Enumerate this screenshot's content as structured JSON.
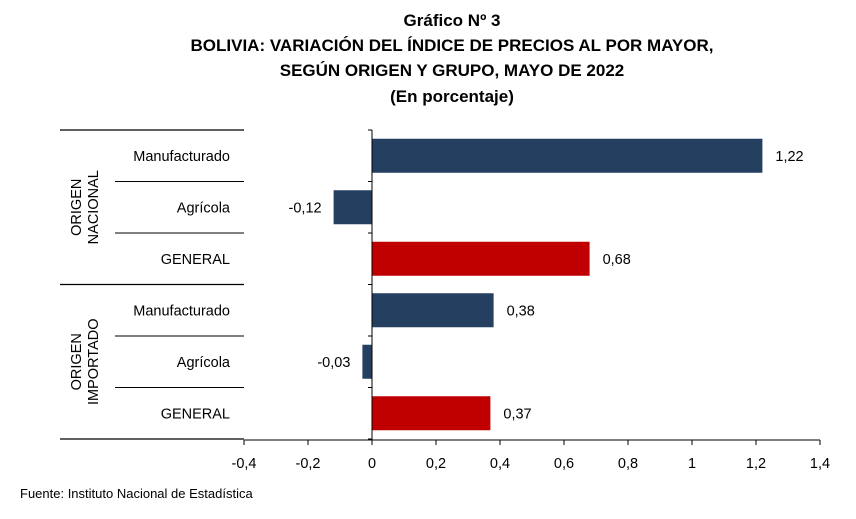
{
  "chart_data": {
    "type": "bar",
    "orientation": "horizontal",
    "title": [
      "Gráfico Nº 3",
      "BOLIVIA: VARIACIÓN DEL ÍNDICE DE PRECIOS AL POR MAYOR,",
      "SEGÚN ORIGEN Y GRUPO, MAYO DE 2022",
      "(En porcentaje)"
    ],
    "groups": [
      {
        "label": [
          "ORIGEN",
          "NACIONAL"
        ],
        "categories": [
          "Manufacturado",
          "Agrícola",
          "GENERAL"
        ]
      },
      {
        "label": [
          "ORIGEN",
          "IMPORTADO"
        ],
        "categories": [
          "Manufacturado",
          "Agrícola",
          "GENERAL"
        ]
      }
    ],
    "values": [
      1.22,
      -0.12,
      0.68,
      0.38,
      -0.03,
      0.37
    ],
    "value_labels": [
      "1,22",
      "-0,12",
      "0,68",
      "0,38",
      "-0,03",
      "0,37"
    ],
    "bar_colors": [
      "#243F60",
      "#243F60",
      "#C00000",
      "#243F60",
      "#243F60",
      "#C00000"
    ],
    "xlim": [
      -0.4,
      1.4
    ],
    "xticks": [
      -0.4,
      -0.2,
      0,
      0.2,
      0.4,
      0.6,
      0.8,
      1,
      1.2,
      1.4
    ],
    "xtick_labels": [
      "-0,4",
      "-0,2",
      "0",
      "0,2",
      "0,4",
      "0,6",
      "0,8",
      "1",
      "1,2",
      "1,4"
    ],
    "grid": false,
    "legend": "none"
  },
  "source": "Fuente: Instituto Nacional de Estadística",
  "colors": {
    "manufactured_agricola": "#243F60",
    "general": "#C00000",
    "axis": "#000000"
  }
}
